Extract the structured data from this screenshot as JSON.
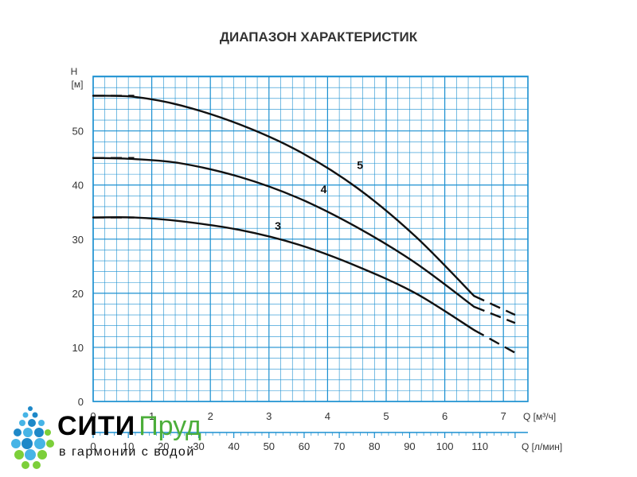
{
  "chart_data": {
    "type": "line",
    "title": "ДИАПАЗОН ХАРАКТЕРИСТИК",
    "ylabel_top": "H",
    "ylabel_unit": "[м]",
    "xlabel": "Q [м³/ч]",
    "xlabel2": "Q [л/мин]",
    "xlim": [
      0,
      7.3
    ],
    "ylim": [
      0,
      60
    ],
    "yticks": [
      0,
      10,
      20,
      30,
      40,
      50
    ],
    "xticks": [
      0,
      1,
      2,
      3,
      4,
      5,
      6,
      7
    ],
    "xticks2": [
      0,
      10,
      20,
      30,
      40,
      50,
      60,
      70,
      80,
      90,
      100,
      110
    ],
    "grid": true,
    "colors": {
      "grid": "#1a8fd0",
      "curve": "#111111",
      "frame": "#1a8fd0"
    },
    "series": [
      {
        "name": "5",
        "points": [
          [
            0,
            56.5
          ],
          [
            0.7,
            56.3
          ],
          [
            1.5,
            54.7
          ],
          [
            2.5,
            51.2
          ],
          [
            3.5,
            46.3
          ],
          [
            4.5,
            39.5
          ],
          [
            5.5,
            30.5
          ],
          [
            6.5,
            19.5
          ]
        ],
        "dashed_start": [
          [
            0,
            56.5
          ],
          [
            0.7,
            56.5
          ]
        ],
        "dashed_end": [
          [
            6.5,
            19.5
          ],
          [
            7.2,
            16.0
          ]
        ],
        "label_at": [
          4.5,
          43
        ]
      },
      {
        "name": "4",
        "points": [
          [
            0,
            45
          ],
          [
            0.7,
            44.8
          ],
          [
            1.5,
            44.0
          ],
          [
            2.5,
            41.5
          ],
          [
            3.5,
            37.6
          ],
          [
            4.5,
            32.2
          ],
          [
            5.5,
            25.6
          ],
          [
            6.5,
            17.5
          ]
        ],
        "dashed_start": [
          [
            0,
            45
          ],
          [
            0.7,
            45
          ]
        ],
        "dashed_end": [
          [
            6.5,
            17.5
          ],
          [
            7.2,
            14.5
          ]
        ],
        "label_at": [
          3.88,
          38.5
        ]
      },
      {
        "name": "3",
        "points": [
          [
            0,
            34
          ],
          [
            0.7,
            34.0
          ],
          [
            1.5,
            33.3
          ],
          [
            2.5,
            31.7
          ],
          [
            3.5,
            29.0
          ],
          [
            4.5,
            25.0
          ],
          [
            5.5,
            20.0
          ],
          [
            6.5,
            13.2
          ]
        ],
        "dashed_start": [
          [
            0,
            34
          ],
          [
            0.7,
            34
          ]
        ],
        "dashed_end": [
          [
            6.5,
            13.2
          ],
          [
            7.2,
            9.0
          ]
        ],
        "label_at": [
          3.1,
          31.7
        ]
      }
    ]
  },
  "logo": {
    "name_part1": "СИТИ",
    "name_part2": "Пруд",
    "slogan": "в гармонии с водой",
    "colors": {
      "text": "#000000",
      "accent": "#4cae3a",
      "drops": [
        "#1e88c8",
        "#46b4e6",
        "#7ccf3a"
      ]
    }
  }
}
